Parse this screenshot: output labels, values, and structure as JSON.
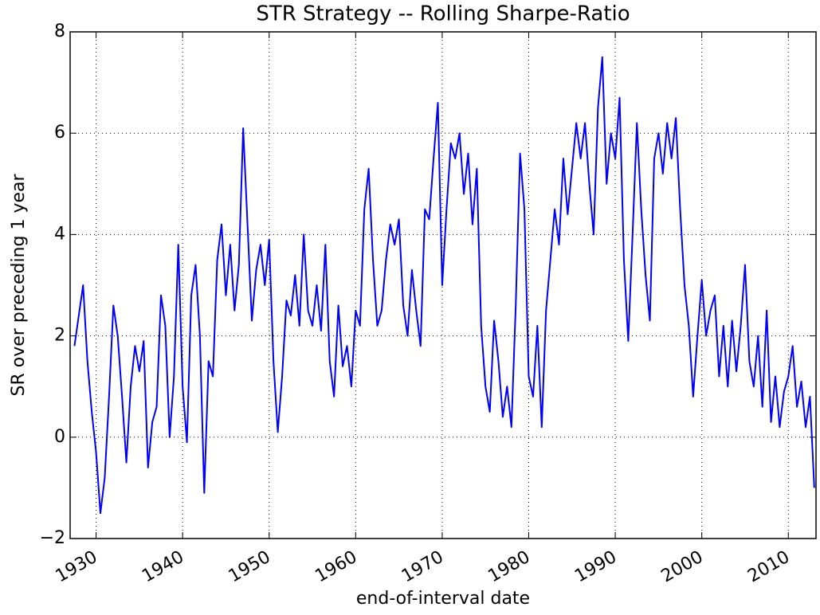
{
  "chart_data": {
    "type": "line",
    "title": "STR Strategy -- Rolling Sharpe-Ratio",
    "x_label": "end-of-interval date",
    "y_label": "SR over preceding 1 year",
    "color": "#0000ff",
    "grid": true,
    "xlim": [
      1927,
      2013.2
    ],
    "ylim": [
      -2,
      8
    ],
    "xticks": [
      1930,
      1940,
      1950,
      1960,
      1970,
      1980,
      1990,
      2000,
      2010
    ],
    "yticks": [
      {
        "value": -2,
        "label": "−2"
      },
      0,
      2,
      4,
      6,
      8
    ],
    "x": [
      1927.5,
      1928,
      1928.5,
      1929,
      1929.5,
      1930,
      1930.5,
      1931,
      1931.5,
      1932,
      1932.5,
      1933,
      1933.5,
      1934,
      1934.5,
      1935,
      1935.5,
      1936,
      1936.5,
      1937,
      1937.5,
      1938,
      1938.5,
      1939,
      1939.5,
      1940,
      1940.5,
      1941,
      1941.5,
      1942,
      1942.5,
      1943,
      1943.5,
      1944,
      1944.5,
      1945,
      1945.5,
      1946,
      1946.5,
      1947,
      1947.5,
      1948,
      1948.5,
      1949,
      1949.5,
      1950,
      1950.5,
      1951,
      1951.5,
      1952,
      1952.5,
      1953,
      1953.5,
      1954,
      1954.5,
      1955,
      1955.5,
      1956,
      1956.5,
      1957,
      1957.5,
      1958,
      1958.5,
      1959,
      1959.5,
      1960,
      1960.5,
      1961,
      1961.5,
      1962,
      1962.5,
      1963,
      1963.5,
      1964,
      1964.5,
      1965,
      1965.5,
      1966,
      1966.5,
      1967,
      1967.5,
      1968,
      1968.5,
      1969,
      1969.5,
      1970,
      1970.5,
      1971,
      1971.5,
      1972,
      1972.5,
      1973,
      1973.5,
      1974,
      1974.5,
      1975,
      1975.5,
      1976,
      1976.5,
      1977,
      1977.5,
      1978,
      1978.5,
      1979,
      1979.5,
      1980,
      1980.5,
      1981,
      1981.5,
      1982,
      1982.5,
      1983,
      1983.5,
      1984,
      1984.5,
      1985,
      1985.5,
      1986,
      1986.5,
      1987,
      1987.5,
      1988,
      1988.5,
      1989,
      1989.5,
      1990,
      1990.5,
      1991,
      1991.5,
      1992,
      1992.5,
      1993,
      1993.5,
      1994,
      1994.5,
      1995,
      1995.5,
      1996,
      1996.5,
      1997,
      1997.5,
      1998,
      1998.5,
      1999,
      1999.5,
      2000,
      2000.5,
      2001,
      2001.5,
      2002,
      2002.5,
      2003,
      2003.5,
      2004,
      2004.5,
      2005,
      2005.5,
      2006,
      2006.5,
      2007,
      2007.5,
      2008,
      2008.5,
      2009,
      2009.5,
      2010,
      2010.5,
      2011,
      2011.5,
      2012,
      2012.5,
      2013
    ],
    "values": [
      1.8,
      2.4,
      3.0,
      1.5,
      0.5,
      -0.3,
      -1.5,
      -0.8,
      0.8,
      2.6,
      2.0,
      0.8,
      -0.5,
      1.0,
      1.8,
      1.3,
      1.9,
      -0.6,
      0.3,
      0.6,
      2.8,
      2.2,
      0.0,
      1.2,
      3.8,
      1.0,
      -0.1,
      2.8,
      3.4,
      2.0,
      -1.1,
      1.5,
      1.2,
      3.5,
      4.2,
      2.8,
      3.8,
      2.5,
      3.4,
      6.1,
      4.2,
      2.3,
      3.3,
      3.8,
      3.0,
      3.9,
      1.5,
      0.1,
      1.2,
      2.7,
      2.4,
      3.2,
      2.2,
      4.0,
      2.5,
      2.2,
      3.0,
      2.1,
      3.8,
      1.5,
      0.8,
      2.6,
      1.4,
      1.8,
      1.0,
      2.5,
      2.2,
      4.5,
      5.3,
      3.5,
      2.2,
      2.5,
      3.5,
      4.2,
      3.8,
      4.3,
      2.6,
      2.0,
      3.3,
      2.5,
      1.8,
      4.5,
      4.3,
      5.5,
      6.6,
      3.0,
      4.5,
      5.8,
      5.5,
      6.0,
      4.8,
      5.6,
      4.2,
      5.3,
      2.2,
      1.0,
      0.5,
      2.3,
      1.5,
      0.4,
      1.0,
      0.2,
      2.6,
      5.6,
      4.5,
      1.2,
      0.8,
      2.2,
      0.2,
      2.5,
      3.5,
      4.5,
      3.8,
      5.5,
      4.4,
      5.3,
      6.2,
      5.5,
      6.2,
      5.0,
      4.0,
      6.5,
      7.5,
      5.0,
      6.0,
      5.5,
      6.7,
      3.5,
      1.9,
      4.0,
      6.2,
      4.5,
      3.2,
      2.3,
      5.5,
      6.0,
      5.2,
      6.2,
      5.5,
      6.3,
      4.5,
      3.0,
      2.2,
      0.8,
      2.0,
      3.1,
      2.0,
      2.5,
      2.8,
      1.2,
      2.2,
      1.0,
      2.3,
      1.3,
      2.2,
      3.4,
      1.5,
      1.0,
      2.0,
      0.6,
      2.5,
      0.3,
      1.2,
      0.2,
      0.9,
      1.2,
      1.8,
      0.6,
      1.1,
      0.2,
      0.8,
      -1.0
    ]
  }
}
